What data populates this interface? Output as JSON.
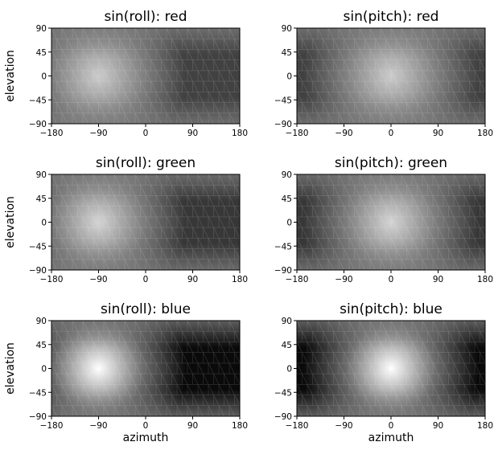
{
  "chart_data": [
    {
      "type": "heatmap",
      "title": "sin(roll):  red",
      "xlabel": "",
      "ylabel": "elevation",
      "xlim": [
        -180,
        180
      ],
      "ylim": [
        -90,
        90
      ],
      "xticks": [
        "-180",
        "-90",
        "0",
        "90",
        "180"
      ],
      "yticks": [
        "90",
        "45",
        "0",
        "-45",
        "-90"
      ],
      "peak_brightness": {
        "azimuth": -90,
        "elevation": 0,
        "contrast": 0.45
      }
    },
    {
      "type": "heatmap",
      "title": "sin(pitch):  red",
      "xlabel": "",
      "ylabel": "",
      "xlim": [
        -180,
        180
      ],
      "ylim": [
        -90,
        90
      ],
      "xticks": [
        "-180",
        "-90",
        "0",
        "90",
        "180"
      ],
      "yticks": [
        "90",
        "45",
        "0",
        "-45",
        "-90"
      ],
      "peak_brightness": {
        "azimuth": 0,
        "elevation": 0,
        "contrast": 0.45
      }
    },
    {
      "type": "heatmap",
      "title": "sin(roll):  green",
      "xlabel": "",
      "ylabel": "elevation",
      "xlim": [
        -180,
        180
      ],
      "ylim": [
        -90,
        90
      ],
      "xticks": [
        "-180",
        "-90",
        "0",
        "90",
        "180"
      ],
      "yticks": [
        "90",
        "45",
        "0",
        "-45",
        "-90"
      ],
      "peak_brightness": {
        "azimuth": -90,
        "elevation": 0,
        "contrast": 0.55
      }
    },
    {
      "type": "heatmap",
      "title": "sin(pitch):  green",
      "xlabel": "",
      "ylabel": "",
      "xlim": [
        -180,
        180
      ],
      "ylim": [
        -90,
        90
      ],
      "xticks": [
        "-180",
        "-90",
        "0",
        "90",
        "180"
      ],
      "yticks": [
        "90",
        "45",
        "0",
        "-45",
        "-90"
      ],
      "peak_brightness": {
        "azimuth": 0,
        "elevation": 0,
        "contrast": 0.55
      }
    },
    {
      "type": "heatmap",
      "title": "sin(roll):  blue",
      "xlabel": "azimuth",
      "ylabel": "elevation",
      "xlim": [
        -180,
        180
      ],
      "ylim": [
        -90,
        90
      ],
      "xticks": [
        "-180",
        "-90",
        "0",
        "90",
        "180"
      ],
      "yticks": [
        "90",
        "45",
        "0",
        "-45",
        "-90"
      ],
      "peak_brightness": {
        "azimuth": -90,
        "elevation": 0,
        "contrast": 1.0
      }
    },
    {
      "type": "heatmap",
      "title": "sin(pitch):  blue",
      "xlabel": "azimuth",
      "ylabel": "",
      "xlim": [
        -180,
        180
      ],
      "ylim": [
        -90,
        90
      ],
      "xticks": [
        "-180",
        "-90",
        "0",
        "90",
        "180"
      ],
      "yticks": [
        "90",
        "45",
        "0",
        "-45",
        "-90"
      ],
      "peak_brightness": {
        "azimuth": 0,
        "elevation": 0,
        "contrast": 1.0
      }
    }
  ]
}
